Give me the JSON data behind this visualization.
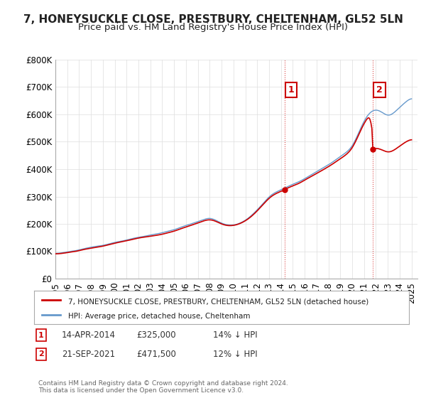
{
  "title": "7, HONEYSUCKLE CLOSE, PRESTBURY, CHELTENHAM, GL52 5LN",
  "subtitle": "Price paid vs. HM Land Registry's House Price Index (HPI)",
  "legend_line1": "7, HONEYSUCKLE CLOSE, PRESTBURY, CHELTENHAM, GL52 5LN (detached house)",
  "legend_line2": "HPI: Average price, detached house, Cheltenham",
  "annotation1_label": "1",
  "annotation1_date": "14-APR-2014",
  "annotation1_price": "£325,000",
  "annotation1_pct": "14% ↓ HPI",
  "annotation2_label": "2",
  "annotation2_date": "21-SEP-2021",
  "annotation2_price": "£471,500",
  "annotation2_pct": "12% ↓ HPI",
  "footer": "Contains HM Land Registry data © Crown copyright and database right 2024.\nThis data is licensed under the Open Government Licence v3.0.",
  "ylim_min": 0,
  "ylim_max": 800000,
  "yticks": [
    0,
    100000,
    200000,
    300000,
    400000,
    500000,
    600000,
    700000,
    800000
  ],
  "ytick_labels": [
    "£0",
    "£100K",
    "£200K",
    "£300K",
    "£400K",
    "£500K",
    "£600K",
    "£700K",
    "£800K"
  ],
  "red_color": "#cc0000",
  "blue_color": "#6699cc",
  "background_color": "#ffffff",
  "grid_color": "#dddddd",
  "annotation_box_color": "#cc0000",
  "title_fontsize": 11,
  "subtitle_fontsize": 9.5,
  "tick_fontsize": 8.5
}
